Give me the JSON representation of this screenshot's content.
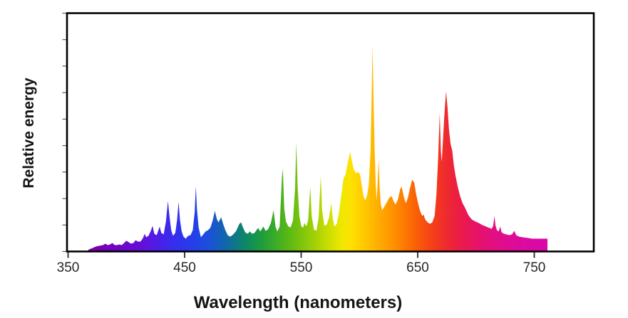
{
  "figure": {
    "background": "#FFFFFF",
    "frame_color": "#000000",
    "x_tick_color": "#262626",
    "y_tick_color": "#595959",
    "text_color": "#141414"
  },
  "chart_data": {
    "type": "area",
    "title": "",
    "xlabel": "Wavelength (nanometers)",
    "ylabel": "Relative energy",
    "xlim": [
      349,
      801
    ],
    "ylim": [
      0,
      1.155
    ],
    "xticks": [
      350,
      450,
      550,
      650,
      750
    ],
    "y_minor_tick_count": 10,
    "grid": false,
    "legend": "none",
    "series": [
      {
        "name": "Relative energy",
        "x_unit": "nm",
        "normalized_peak": {
          "wavelength": 611.2,
          "energy": 1.0
        },
        "points": [
          [
            366,
            0
          ],
          [
            368,
            0.01
          ],
          [
            371,
            0.017
          ],
          [
            374,
            0.024
          ],
          [
            377,
            0.028
          ],
          [
            380,
            0.031
          ],
          [
            382,
            0.038
          ],
          [
            384,
            0.031
          ],
          [
            386,
            0.034
          ],
          [
            388,
            0.041
          ],
          [
            390,
            0.031
          ],
          [
            392,
            0.031
          ],
          [
            394,
            0.034
          ],
          [
            396,
            0.031
          ],
          [
            398,
            0.041
          ],
          [
            400,
            0.052
          ],
          [
            402,
            0.045
          ],
          [
            404,
            0.038
          ],
          [
            406,
            0.041
          ],
          [
            408,
            0.055
          ],
          [
            410,
            0.048
          ],
          [
            412,
            0.048
          ],
          [
            414,
            0.062
          ],
          [
            415.8,
            0.086
          ],
          [
            417,
            0.069
          ],
          [
            419,
            0.076
          ],
          [
            421,
            0.1
          ],
          [
            422.5,
            0.124
          ],
          [
            424,
            0.086
          ],
          [
            426,
            0.079
          ],
          [
            428.6,
            0.121
          ],
          [
            430,
            0.09
          ],
          [
            432,
            0.083
          ],
          [
            434,
            0.145
          ],
          [
            435.7,
            0.245
          ],
          [
            437,
            0.172
          ],
          [
            438.5,
            0.103
          ],
          [
            440,
            0.076
          ],
          [
            442,
            0.09
          ],
          [
            443.5,
            0.152
          ],
          [
            444.8,
            0.241
          ],
          [
            446,
            0.152
          ],
          [
            447.5,
            0.097
          ],
          [
            449,
            0.072
          ],
          [
            451,
            0.062
          ],
          [
            453,
            0.076
          ],
          [
            455,
            0.079
          ],
          [
            457,
            0.103
          ],
          [
            458.6,
            0.19
          ],
          [
            459.6,
            0.317
          ],
          [
            460.6,
            0.207
          ],
          [
            462,
            0.117
          ],
          [
            464,
            0.069
          ],
          [
            466,
            0.083
          ],
          [
            468,
            0.097
          ],
          [
            470,
            0.103
          ],
          [
            472,
            0.114
          ],
          [
            474,
            0.148
          ],
          [
            476,
            0.197
          ],
          [
            477.5,
            0.159
          ],
          [
            479,
            0.141
          ],
          [
            481.4,
            0.166
          ],
          [
            483,
            0.134
          ],
          [
            485,
            0.103
          ],
          [
            487,
            0.079
          ],
          [
            489,
            0.072
          ],
          [
            491,
            0.079
          ],
          [
            494,
            0.097
          ],
          [
            497,
            0.134
          ],
          [
            498.5,
            0.141
          ],
          [
            500,
            0.117
          ],
          [
            502,
            0.093
          ],
          [
            504,
            0.086
          ],
          [
            506,
            0.097
          ],
          [
            508,
            0.086
          ],
          [
            510,
            0.09
          ],
          [
            513,
            0.114
          ],
          [
            515,
            0.097
          ],
          [
            517.5,
            0.121
          ],
          [
            519.5,
            0.1
          ],
          [
            521.5,
            0.107
          ],
          [
            524,
            0.138
          ],
          [
            526.3,
            0.2
          ],
          [
            528,
            0.121
          ],
          [
            529.5,
            0.097
          ],
          [
            531.5,
            0.121
          ],
          [
            533.5,
            0.359
          ],
          [
            534.3,
            0.4
          ],
          [
            535.5,
            0.207
          ],
          [
            537,
            0.145
          ],
          [
            539,
            0.121
          ],
          [
            541,
            0.117
          ],
          [
            543,
            0.152
          ],
          [
            544.8,
            0.31
          ],
          [
            545.8,
            0.528
          ],
          [
            547,
            0.31
          ],
          [
            548.5,
            0.172
          ],
          [
            550,
            0.124
          ],
          [
            551.5,
            0.114
          ],
          [
            553,
            0.138
          ],
          [
            554.5,
            0.121
          ],
          [
            556,
            0.152
          ],
          [
            557.8,
            0.314
          ],
          [
            559,
            0.172
          ],
          [
            561,
            0.107
          ],
          [
            563,
            0.1
          ],
          [
            565,
            0.162
          ],
          [
            566.8,
            0.366
          ],
          [
            568,
            0.197
          ],
          [
            570,
            0.124
          ],
          [
            572,
            0.131
          ],
          [
            574,
            0.166
          ],
          [
            575.8,
            0.234
          ],
          [
            577,
            0.166
          ],
          [
            578.5,
            0.121
          ],
          [
            580.5,
            0.134
          ],
          [
            582.5,
            0.19
          ],
          [
            584.5,
            0.276
          ],
          [
            586.3,
            0.355
          ],
          [
            588,
            0.372
          ],
          [
            590,
            0.431
          ],
          [
            592,
            0.483
          ],
          [
            593.5,
            0.441
          ],
          [
            595,
            0.4
          ],
          [
            597,
            0.379
          ],
          [
            599,
            0.386
          ],
          [
            600.5,
            0.372
          ],
          [
            602,
            0.321
          ],
          [
            603.5,
            0.266
          ],
          [
            605,
            0.248
          ],
          [
            606.5,
            0.272
          ],
          [
            608,
            0.321
          ],
          [
            609.5,
            0.483
          ],
          [
            610.5,
            0.759
          ],
          [
            611.2,
            1
          ],
          [
            612,
            0.759
          ],
          [
            613,
            0.5
          ],
          [
            614,
            0.321
          ],
          [
            614.7,
            0.248
          ],
          [
            615.5,
            0.321
          ],
          [
            616.4,
            0.448
          ],
          [
            617.3,
            0.321
          ],
          [
            618.2,
            0.234
          ],
          [
            619.5,
            0.2
          ],
          [
            621,
            0.214
          ],
          [
            623,
            0.234
          ],
          [
            625.5,
            0.259
          ],
          [
            627.5,
            0.269
          ],
          [
            629.5,
            0.241
          ],
          [
            631,
            0.228
          ],
          [
            633,
            0.252
          ],
          [
            635,
            0.303
          ],
          [
            636.2,
            0.314
          ],
          [
            638,
            0.266
          ],
          [
            639.8,
            0.234
          ],
          [
            641.5,
            0.259
          ],
          [
            643.5,
            0.31
          ],
          [
            645.2,
            0.348
          ],
          [
            647,
            0.334
          ],
          [
            648.5,
            0.283
          ],
          [
            650,
            0.241
          ],
          [
            652,
            0.197
          ],
          [
            653.8,
            0.172
          ],
          [
            655,
            0.179
          ],
          [
            656.5,
            0.155
          ],
          [
            658.5,
            0.141
          ],
          [
            660.5,
            0.134
          ],
          [
            662.5,
            0.141
          ],
          [
            664.5,
            0.172
          ],
          [
            666,
            0.276
          ],
          [
            667.5,
            0.448
          ],
          [
            668.9,
            0.672
          ],
          [
            669.9,
            0.483
          ],
          [
            670.6,
            0.434
          ],
          [
            671.6,
            0.534
          ],
          [
            673,
            0.672
          ],
          [
            674.3,
            0.776
          ],
          [
            675.5,
            0.703
          ],
          [
            676.8,
            0.593
          ],
          [
            678.2,
            0.521
          ],
          [
            679.6,
            0.49
          ],
          [
            681,
            0.417
          ],
          [
            682.5,
            0.366
          ],
          [
            684.5,
            0.31
          ],
          [
            686.5,
            0.266
          ],
          [
            688.5,
            0.234
          ],
          [
            690.8,
            0.21
          ],
          [
            693.5,
            0.176
          ],
          [
            696.5,
            0.155
          ],
          [
            699.5,
            0.145
          ],
          [
            702.5,
            0.138
          ],
          [
            705.5,
            0.128
          ],
          [
            708.5,
            0.121
          ],
          [
            711.5,
            0.114
          ],
          [
            713.5,
            0.11
          ],
          [
            714.8,
            0.124
          ],
          [
            715.8,
            0.172
          ],
          [
            716.8,
            0.124
          ],
          [
            718,
            0.103
          ],
          [
            719.5,
            0.097
          ],
          [
            720.8,
            0.121
          ],
          [
            722,
            0.093
          ],
          [
            724,
            0.086
          ],
          [
            726,
            0.083
          ],
          [
            728.5,
            0.079
          ],
          [
            731,
            0.083
          ],
          [
            732.8,
            0.1
          ],
          [
            734.5,
            0.079
          ],
          [
            737,
            0.072
          ],
          [
            740,
            0.069
          ],
          [
            744,
            0.066
          ],
          [
            748,
            0.062
          ],
          [
            753,
            0.062
          ],
          [
            758,
            0.062
          ],
          [
            761.3,
            0.062
          ]
        ]
      }
    ],
    "spectrum_gradient": [
      [
        366,
        "#7A00A6"
      ],
      [
        385,
        "#7301BE"
      ],
      [
        405,
        "#6A0AD2"
      ],
      [
        420,
        "#5A16E0"
      ],
      [
        435,
        "#3F27EC"
      ],
      [
        448,
        "#2C35EE"
      ],
      [
        460,
        "#2342E8"
      ],
      [
        472,
        "#1A52D6"
      ],
      [
        484,
        "#1165AE"
      ],
      [
        495,
        "#0D7A80"
      ],
      [
        505,
        "#0F8C5C"
      ],
      [
        516,
        "#1F9C3C"
      ],
      [
        528,
        "#3BAC26"
      ],
      [
        540,
        "#5DB915"
      ],
      [
        552,
        "#82C60C"
      ],
      [
        564,
        "#ABD305"
      ],
      [
        576,
        "#D4E000"
      ],
      [
        585,
        "#EFE800"
      ],
      [
        593,
        "#FEE000"
      ],
      [
        602,
        "#FFCD00"
      ],
      [
        611,
        "#FFB900"
      ],
      [
        620,
        "#FFA500"
      ],
      [
        629,
        "#FF9100"
      ],
      [
        638,
        "#FD7B02"
      ],
      [
        647,
        "#FA6406"
      ],
      [
        656,
        "#F74E10"
      ],
      [
        665,
        "#F33B1D"
      ],
      [
        674,
        "#EF2B2E"
      ],
      [
        683,
        "#EC1F41"
      ],
      [
        692,
        "#E91755"
      ],
      [
        701,
        "#E61367"
      ],
      [
        711,
        "#E3107A"
      ],
      [
        722,
        "#E00D8B"
      ],
      [
        734,
        "#DD0B99"
      ],
      [
        746,
        "#DB09A1"
      ],
      [
        761,
        "#D908A8"
      ]
    ]
  }
}
